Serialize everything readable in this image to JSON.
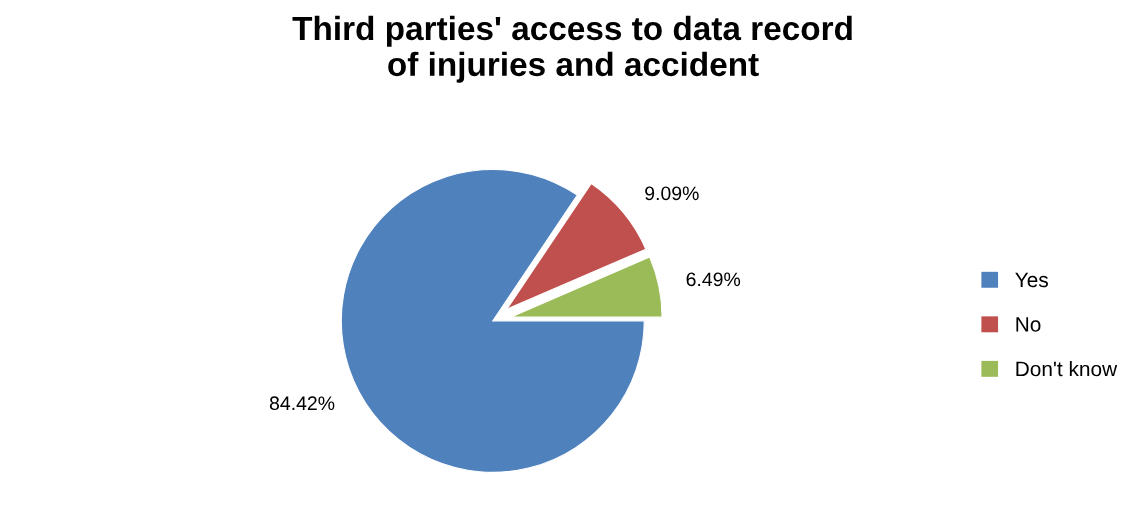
{
  "chart_data": {
    "type": "pie",
    "title": "Third parties' access to data record\nof injuries and accident",
    "categories": [
      "Yes",
      "No",
      "Don't know"
    ],
    "values": [
      84.42,
      9.09,
      6.49
    ],
    "value_labels": [
      "84.42%",
      "9.09%",
      "6.49%"
    ],
    "colors": [
      "#4f81bd",
      "#c0504d",
      "#9bbb59"
    ],
    "legend": "right"
  }
}
